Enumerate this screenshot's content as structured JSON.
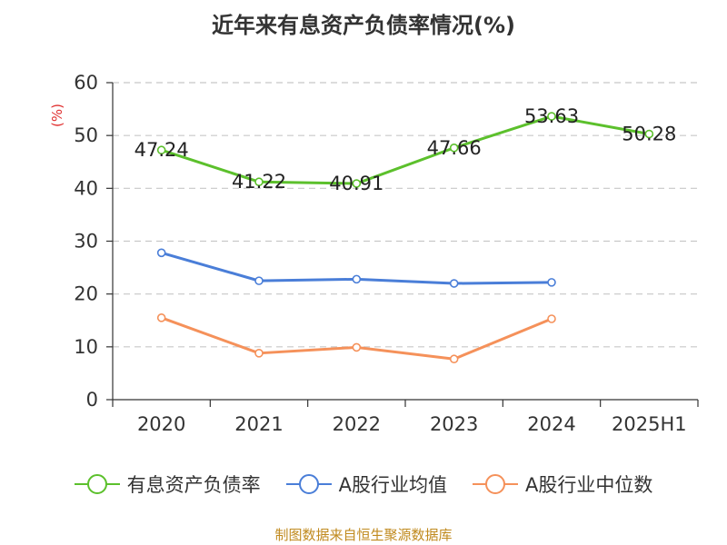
{
  "chart_data": {
    "type": "line",
    "title": "近年来有息资产负债率情况(%)",
    "ylabel": "(%)",
    "categories": [
      "2020",
      "2021",
      "2022",
      "2023",
      "2024",
      "2025H1"
    ],
    "ylim": [
      0,
      60
    ],
    "yticks": [
      0,
      10,
      20,
      30,
      40,
      50,
      60
    ],
    "grid": true,
    "legend_position": "bottom",
    "series": [
      {
        "name": "有息资产负债率",
        "color": "#5cc02c",
        "values": [
          47.24,
          41.22,
          40.91,
          47.66,
          53.63,
          50.28
        ],
        "labels": [
          "47.24",
          "41.22",
          "40.91",
          "47.66",
          "53.63",
          "50.28"
        ]
      },
      {
        "name": "A股行业均值",
        "color": "#4a7ed8",
        "values": [
          27.8,
          22.5,
          22.8,
          22.0,
          22.2,
          null
        ]
      },
      {
        "name": "A股行业中位数",
        "color": "#f5915a",
        "values": [
          15.5,
          8.8,
          9.9,
          7.7,
          15.3,
          null
        ]
      }
    ]
  },
  "footer": {
    "source": "制图数据来自恒生聚源数据库"
  }
}
